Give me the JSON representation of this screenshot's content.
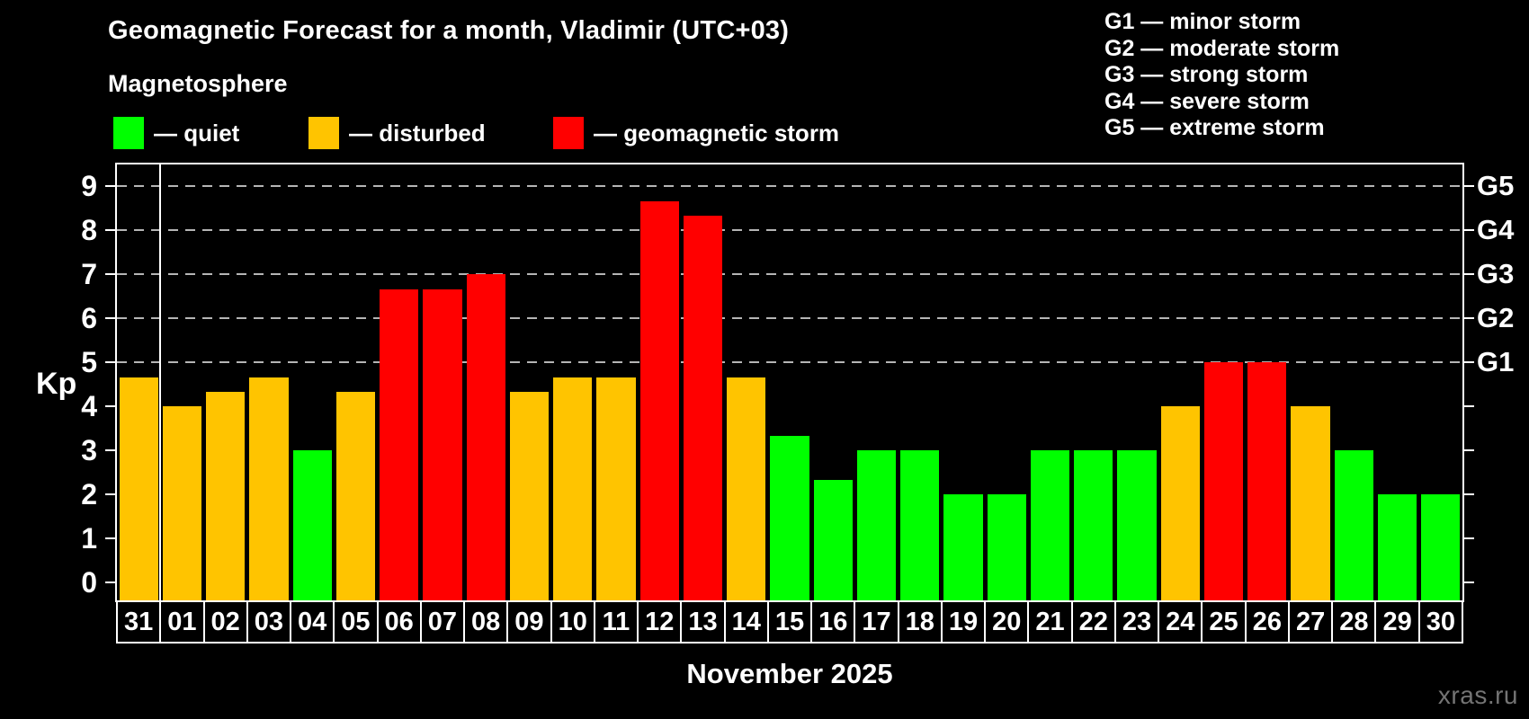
{
  "title": "Geomagnetic Forecast for a month, Vladimir (UTC+03)",
  "subtitle": "Magnetosphere",
  "legend": {
    "quiet": "— quiet",
    "disturbed": "— disturbed",
    "storm": "— geomagnetic storm"
  },
  "g_legend": [
    "G1 — minor storm",
    "G2 — moderate storm",
    "G3 — strong storm",
    "G4 — severe storm",
    "G5 — extreme storm"
  ],
  "axis": {
    "kp_label": "Kp"
  },
  "watermark": "xras.ru",
  "colors": {
    "quiet": "#00ff00",
    "disturbed": "#ffc400",
    "storm": "#ff0000"
  },
  "chart_data": {
    "type": "bar",
    "title": "Geomagnetic Forecast for a month, Vladimir (UTC+03)",
    "xlabel": "November 2025",
    "ylabel": "Kp",
    "x_categories": [
      "31",
      "01",
      "02",
      "03",
      "04",
      "05",
      "06",
      "07",
      "08",
      "09",
      "10",
      "11",
      "12",
      "13",
      "14",
      "15",
      "16",
      "17",
      "18",
      "19",
      "20",
      "21",
      "22",
      "23",
      "24",
      "25",
      "26",
      "27",
      "28",
      "29",
      "30"
    ],
    "series": [
      {
        "name": "Kp forecast",
        "values": [
          4.67,
          4.0,
          4.33,
          4.67,
          3.0,
          4.33,
          6.67,
          6.67,
          7.0,
          4.33,
          4.67,
          4.67,
          8.67,
          8.33,
          4.67,
          3.33,
          2.33,
          3.0,
          3.0,
          2.0,
          2.0,
          3.0,
          3.0,
          3.0,
          4.0,
          5.0,
          5.0,
          4.0,
          3.0,
          2.0,
          2.0
        ]
      }
    ],
    "status": [
      "disturbed",
      "disturbed",
      "disturbed",
      "disturbed",
      "quiet",
      "disturbed",
      "storm",
      "storm",
      "storm",
      "disturbed",
      "disturbed",
      "disturbed",
      "storm",
      "storm",
      "disturbed",
      "quiet",
      "quiet",
      "quiet",
      "quiet",
      "quiet",
      "quiet",
      "quiet",
      "quiet",
      "quiet",
      "disturbed",
      "storm",
      "storm",
      "disturbed",
      "quiet",
      "quiet",
      "quiet"
    ],
    "ylim": [
      -0.4,
      9.5
    ],
    "kp_ticks": [
      0,
      1,
      2,
      3,
      4,
      5,
      6,
      7,
      8,
      9
    ],
    "gridlines_at": [
      5,
      6,
      7,
      8,
      9
    ],
    "g_labels": {
      "5": "G1",
      "6": "G2",
      "7": "G3",
      "8": "G4",
      "9": "G5"
    },
    "month_separator_after_category": "31",
    "grid": "dashed horizontal at storm levels only",
    "legend_position": "top"
  }
}
